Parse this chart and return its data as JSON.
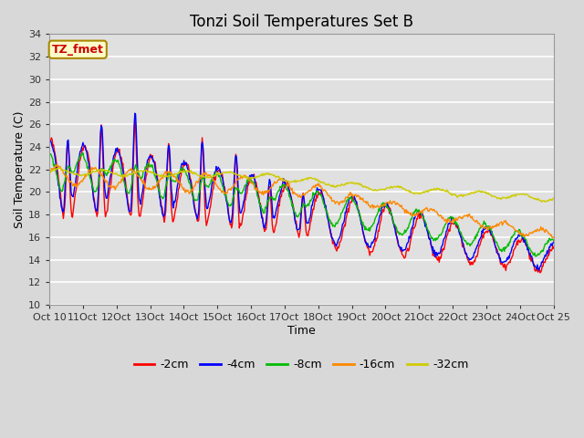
{
  "title": "Tonzi Soil Temperatures Set B",
  "xlabel": "Time",
  "ylabel": "Soil Temperature (C)",
  "ylim": [
    10,
    34
  ],
  "yticks": [
    10,
    12,
    14,
    16,
    18,
    20,
    22,
    24,
    26,
    28,
    30,
    32,
    34
  ],
  "series_colors": {
    "-2cm": "#ff0000",
    "-4cm": "#0000ff",
    "-8cm": "#00bb00",
    "-16cm": "#ff8800",
    "-32cm": "#cccc00"
  },
  "legend_label": "TZ_fmet",
  "fig_bg": "#d8d8d8",
  "plot_bg": "#e0e0e0",
  "grid_color": "#ffffff"
}
